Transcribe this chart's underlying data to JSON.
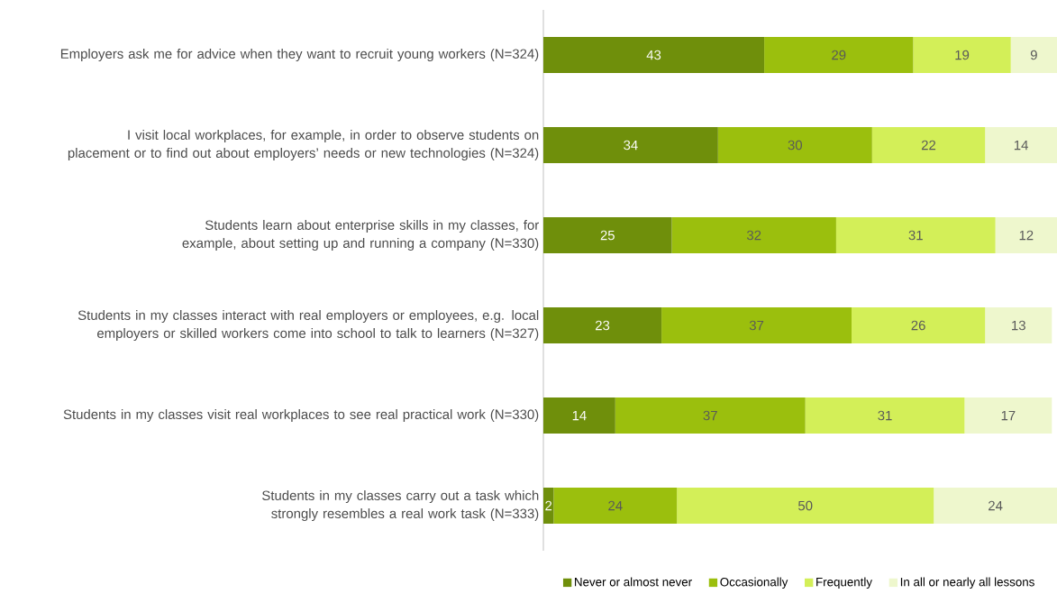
{
  "chart_data": {
    "type": "bar",
    "orientation": "horizontal",
    "stacked": true,
    "data_labels": true,
    "legend": "bottom",
    "tick_labels": "y",
    "categories": [
      "Employers ask me for advice when they want to recruit young workers (N=324)",
      "I visit local workplaces, for example, in order to observe students on placement or to find out about employers’ needs or new technologies (N=324)",
      "Students learn about enterprise skills in my classes, for example, about setting up and running a company (N=330)",
      "Students in my classes interact with real employers or employees, e.g. local employers or skilled workers come into school to talk to learners (N=327)",
      "Students in my classes visit real workplaces to see real practical work (N=330)",
      "Students in my classes carry out a task which strongly resembles a real work task (N=333)"
    ],
    "series": [
      {
        "name": "Never or almost never",
        "color": "#6f8f0b",
        "values": [
          43,
          34,
          25,
          23,
          14,
          2
        ]
      },
      {
        "name": "Occasionally",
        "color": "#9bbf0d",
        "values": [
          29,
          30,
          32,
          37,
          37,
          24
        ]
      },
      {
        "name": "Frequently",
        "color": "#d3ef58",
        "values": [
          19,
          22,
          31,
          26,
          31,
          50
        ]
      },
      {
        "name": "In all or nearly all lessons",
        "color": "#eef7cd",
        "values": [
          9,
          14,
          12,
          13,
          17,
          24
        ]
      }
    ]
  }
}
